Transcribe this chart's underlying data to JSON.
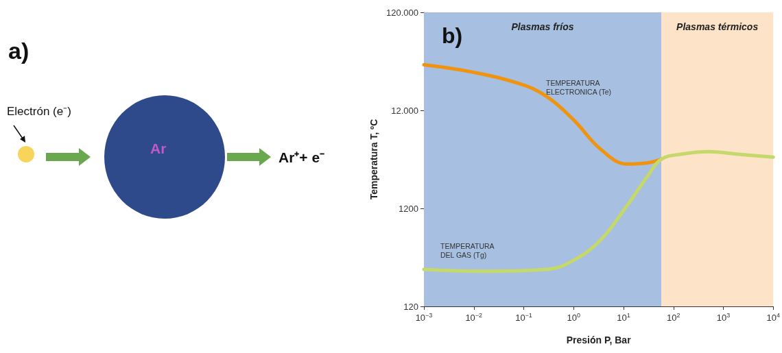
{
  "chart_data": [
    {
      "type": "other",
      "annotations": [
        "a)",
        "Electrón (e⁻)",
        "Ar",
        "Ar⁺+ e⁻"
      ]
    },
    {
      "type": "line",
      "xlabel": "Presión P, Bar",
      "ylabel": "Temperatura T, ºC",
      "log": "xy",
      "marker": "none",
      "xlim": [
        0.001,
        10000
      ],
      "ylim": [
        120,
        120000
      ],
      "xticks": [
        {
          "value": 0.001,
          "label": "10$^{−3}$"
        },
        {
          "value": 0.01,
          "label": "10$^{−2}$"
        },
        {
          "value": 0.1,
          "label": "10$^{−1}$"
        },
        {
          "value": 1,
          "label": "10$^{0}$"
        },
        {
          "value": 10,
          "label": "10$^{1}$"
        },
        {
          "value": 100,
          "label": "10$^{2}$"
        },
        {
          "value": 1000,
          "label": "10$^{3}$"
        },
        {
          "value": 10000,
          "label": "10$^{4}$"
        }
      ],
      "yticks": [
        {
          "value": 120,
          "label": "120"
        },
        {
          "value": 1200,
          "label": "1200"
        },
        {
          "value": 12000,
          "label": "12.000"
        },
        {
          "value": 120000,
          "label": "120.000"
        }
      ],
      "bands": [
        {
          "axis": "x",
          "from": 0.001,
          "to": 57,
          "label": "Plasmas fríos",
          "color": "#a7bfe0"
        },
        {
          "axis": "x",
          "from": 57,
          "to": 10000,
          "label": "Plasmas térmicos",
          "color": "#fde3c8"
        }
      ],
      "series": [
        {
          "color": "#f0940f",
          "x": [
            0.001,
            0.0093,
            0.083,
            0.29,
            1,
            3.5,
            12,
            31,
            57
          ],
          "values": [
            35000,
            29500,
            22400,
            16600,
            9600,
            4800,
            3400,
            3500,
            3800
          ]
        },
        {
          "color": "#c5d86a",
          "x": [
            0.001,
            0.013,
            0.29,
            1,
            3.5,
            12,
            31,
            57,
            150,
            510,
            1800,
            10000
          ],
          "values": [
            286,
            274,
            286,
            355,
            575,
            1300,
            2600,
            3800,
            4300,
            4550,
            4300,
            4000
          ]
        }
      ],
      "annotations": [
        "b)",
        "TEMPERATURA\nELECTRONICA (Te)",
        "TEMPERATURA\nDEL GAS (Tg)"
      ]
    }
  ]
}
